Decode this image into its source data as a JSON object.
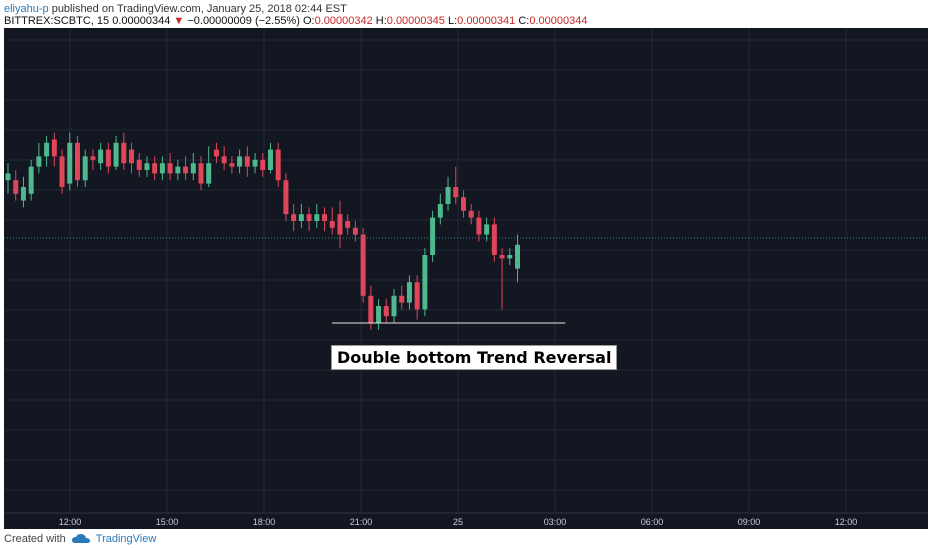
{
  "header": {
    "username": "eliyahu-p",
    "published_text": " published on TradingView.com, January 25, 2018 02:44 EST",
    "symbol": "BITTREX:SCBTC, 15",
    "last": "0.00000344",
    "change_arrow": "▼",
    "change": "−0.00000009 (−2.55%)",
    "o_label": "O:",
    "o_value": "0.00000342",
    "h_label": "H:",
    "h_value": "0.00000345",
    "l_label": "L:",
    "l_value": "0.00000341",
    "c_label": "C:",
    "c_value": "0.00000344"
  },
  "footer": {
    "created_with": "Created with",
    "brand": "TradingView"
  },
  "annotation": {
    "text": "Double bottom Trend Reversal"
  },
  "colors": {
    "up": "#4fb88c",
    "down": "#e0465a",
    "background": "#131722",
    "grid": "#232838",
    "current_line": "#2a8c8c"
  },
  "chart_data": {
    "type": "candlestick",
    "x_tick_labels": [
      "12:00",
      "15:00",
      "18:00",
      "21:00",
      "25",
      "03:00",
      "06:00",
      "09:00",
      "12:00"
    ],
    "y_axis": {
      "min": 0,
      "max": 100,
      "labels_visible": false
    },
    "current_price_level": 50,
    "support_line": {
      "from_candle": 43,
      "to_candle": 67,
      "level": 25
    },
    "candles": [
      {
        "o": 67,
        "c": 69,
        "h": 72,
        "l": 63
      },
      {
        "o": 67,
        "c": 63,
        "h": 70,
        "l": 61
      },
      {
        "o": 61,
        "c": 65,
        "h": 68,
        "l": 59
      },
      {
        "o": 63,
        "c": 71,
        "h": 73,
        "l": 61
      },
      {
        "o": 71,
        "c": 74,
        "h": 78,
        "l": 69
      },
      {
        "o": 74,
        "c": 78,
        "h": 80,
        "l": 71
      },
      {
        "o": 79,
        "c": 74,
        "h": 81,
        "l": 71
      },
      {
        "o": 74,
        "c": 65,
        "h": 76,
        "l": 63
      },
      {
        "o": 66,
        "c": 78,
        "h": 81,
        "l": 64
      },
      {
        "o": 78,
        "c": 67,
        "h": 80,
        "l": 65
      },
      {
        "o": 67,
        "c": 74,
        "h": 76,
        "l": 65
      },
      {
        "o": 74,
        "c": 73,
        "h": 76,
        "l": 70
      },
      {
        "o": 72,
        "c": 76,
        "h": 78,
        "l": 70
      },
      {
        "o": 76,
        "c": 71,
        "h": 78,
        "l": 69
      },
      {
        "o": 71,
        "c": 78,
        "h": 80,
        "l": 70
      },
      {
        "o": 78,
        "c": 72,
        "h": 81,
        "l": 70
      },
      {
        "o": 76,
        "c": 72,
        "h": 78,
        "l": 69
      },
      {
        "o": 73,
        "c": 70,
        "h": 75,
        "l": 68
      },
      {
        "o": 70,
        "c": 72,
        "h": 74,
        "l": 68
      },
      {
        "o": 72,
        "c": 69,
        "h": 74,
        "l": 67
      },
      {
        "o": 69,
        "c": 72,
        "h": 74,
        "l": 67
      },
      {
        "o": 72,
        "c": 69,
        "h": 75,
        "l": 67
      },
      {
        "o": 69,
        "c": 71,
        "h": 73,
        "l": 67
      },
      {
        "o": 71,
        "c": 69,
        "h": 74,
        "l": 67
      },
      {
        "o": 69,
        "c": 72,
        "h": 75,
        "l": 67
      },
      {
        "o": 72,
        "c": 66,
        "h": 74,
        "l": 64
      },
      {
        "o": 66,
        "c": 72,
        "h": 77,
        "l": 65
      },
      {
        "o": 76,
        "c": 74,
        "h": 78,
        "l": 72
      },
      {
        "o": 74,
        "c": 72,
        "h": 77,
        "l": 70
      },
      {
        "o": 72,
        "c": 71,
        "h": 74,
        "l": 69
      },
      {
        "o": 71,
        "c": 74,
        "h": 76,
        "l": 69
      },
      {
        "o": 74,
        "c": 71,
        "h": 77,
        "l": 68
      },
      {
        "o": 71,
        "c": 73,
        "h": 75,
        "l": 69
      },
      {
        "o": 73,
        "c": 70,
        "h": 75,
        "l": 68
      },
      {
        "o": 70,
        "c": 76,
        "h": 78,
        "l": 69
      },
      {
        "o": 76,
        "c": 67,
        "h": 78,
        "l": 65
      },
      {
        "o": 67,
        "c": 57,
        "h": 69,
        "l": 55
      },
      {
        "o": 57,
        "c": 55,
        "h": 60,
        "l": 52
      },
      {
        "o": 55,
        "c": 57,
        "h": 60,
        "l": 53
      },
      {
        "o": 57,
        "c": 55,
        "h": 59,
        "l": 52
      },
      {
        "o": 55,
        "c": 57,
        "h": 60,
        "l": 53
      },
      {
        "o": 57,
        "c": 55,
        "h": 59,
        "l": 52
      },
      {
        "o": 55,
        "c": 53,
        "h": 59,
        "l": 51
      },
      {
        "o": 57,
        "c": 51,
        "h": 61,
        "l": 47
      },
      {
        "o": 55,
        "c": 53,
        "h": 57,
        "l": 51
      },
      {
        "o": 53,
        "c": 51,
        "h": 55,
        "l": 49
      },
      {
        "o": 51,
        "c": 33,
        "h": 53,
        "l": 31
      },
      {
        "o": 33,
        "c": 25,
        "h": 36,
        "l": 23
      },
      {
        "o": 25,
        "c": 30,
        "h": 32,
        "l": 23
      },
      {
        "o": 30,
        "c": 27,
        "h": 32,
        "l": 25
      },
      {
        "o": 27,
        "c": 33,
        "h": 35,
        "l": 25
      },
      {
        "o": 33,
        "c": 31,
        "h": 36,
        "l": 29
      },
      {
        "o": 31,
        "c": 37,
        "h": 39,
        "l": 29
      },
      {
        "o": 37,
        "c": 29,
        "h": 39,
        "l": 26
      },
      {
        "o": 29,
        "c": 45,
        "h": 47,
        "l": 27
      },
      {
        "o": 45,
        "c": 56,
        "h": 58,
        "l": 43
      },
      {
        "o": 56,
        "c": 60,
        "h": 63,
        "l": 54
      },
      {
        "o": 60,
        "c": 65,
        "h": 68,
        "l": 58
      },
      {
        "o": 65,
        "c": 62,
        "h": 71,
        "l": 60
      },
      {
        "o": 62,
        "c": 58,
        "h": 64,
        "l": 56
      },
      {
        "o": 58,
        "c": 56,
        "h": 60,
        "l": 54
      },
      {
        "o": 56,
        "c": 51,
        "h": 58,
        "l": 49
      },
      {
        "o": 51,
        "c": 54,
        "h": 56,
        "l": 49
      },
      {
        "o": 54,
        "c": 45,
        "h": 56,
        "l": 43
      },
      {
        "o": 45,
        "c": 44,
        "h": 47,
        "l": 29
      },
      {
        "o": 44,
        "c": 45,
        "h": 47,
        "l": 42
      },
      {
        "o": 41,
        "c": 48,
        "h": 51,
        "l": 37
      }
    ]
  }
}
